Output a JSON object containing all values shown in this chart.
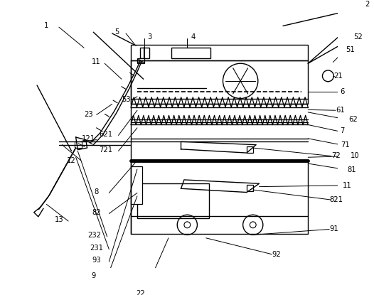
{
  "bg_color": "#ffffff",
  "line_color": "#000000",
  "lw": 1.0,
  "lw_thick": 3.5,
  "fig_width": 5.26,
  "fig_height": 4.15,
  "dpi": 100
}
